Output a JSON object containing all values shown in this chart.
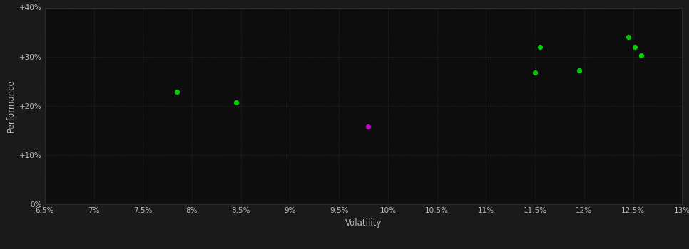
{
  "background_color": "#1a1a1a",
  "plot_bg_color": "#0d0d0d",
  "grid_color": "#2a2a2a",
  "text_color": "#bbbbbb",
  "xlabel": "Volatility",
  "ylabel": "Performance",
  "xlim": [
    0.065,
    0.13
  ],
  "ylim": [
    0.0,
    0.4
  ],
  "xticks": [
    0.065,
    0.07,
    0.075,
    0.08,
    0.085,
    0.09,
    0.095,
    0.1,
    0.105,
    0.11,
    0.115,
    0.12,
    0.125,
    0.13
  ],
  "yticks": [
    0.0,
    0.1,
    0.2,
    0.3,
    0.4
  ],
  "ytick_labels": [
    "0%",
    "+10%",
    "+20%",
    "+30%",
    "+40%"
  ],
  "xtick_labels": [
    "6.5%",
    "7%",
    "7.5%",
    "8%",
    "8.5%",
    "9%",
    "9.5%",
    "10%",
    "10.5%",
    "11%",
    "11.5%",
    "12%",
    "12.5%",
    "13%"
  ],
  "green_points": [
    [
      0.0785,
      0.228
    ],
    [
      0.0845,
      0.207
    ],
    [
      0.115,
      0.268
    ],
    [
      0.1155,
      0.32
    ],
    [
      0.1195,
      0.272
    ],
    [
      0.1245,
      0.34
    ],
    [
      0.1252,
      0.32
    ],
    [
      0.1258,
      0.302
    ]
  ],
  "magenta_points": [
    [
      0.098,
      0.158
    ]
  ],
  "green_color": "#00cc00",
  "magenta_color": "#cc00cc",
  "point_size": 18
}
